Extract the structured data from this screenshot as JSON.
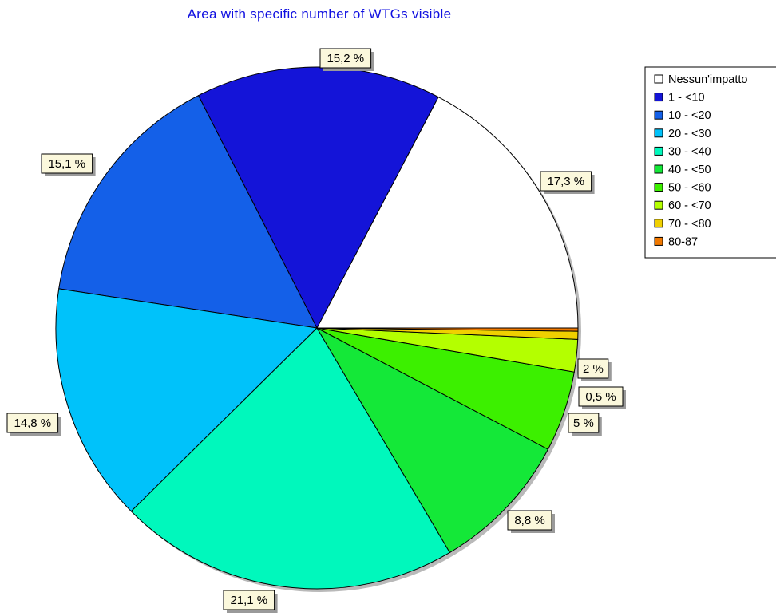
{
  "chart_data": {
    "type": "pie",
    "title": "Area with specific number of WTGs visible",
    "start_angle_deg": 0,
    "direction": "counterclockwise",
    "slices": [
      {
        "label": "Nessun'impatto",
        "value": 17.3,
        "display": "17,3 %",
        "color": "#ffffff"
      },
      {
        "label": "1 - <10",
        "value": 15.2,
        "display": "15,2 %",
        "color": "#1414d8"
      },
      {
        "label": "10 - <20",
        "value": 15.1,
        "display": "15,1 %",
        "color": "#1460e8"
      },
      {
        "label": "20 - <30",
        "value": 14.8,
        "display": "14,8 %",
        "color": "#00c2fa"
      },
      {
        "label": "30 - <40",
        "value": 21.1,
        "display": "21,1 %",
        "color": "#00f8bc"
      },
      {
        "label": "40 - <50",
        "value": 8.8,
        "display": "8,8 %",
        "color": "#14e838"
      },
      {
        "label": "50 - <60",
        "value": 5,
        "display": "5 %",
        "color": "#3cf000"
      },
      {
        "label": "60 - <70",
        "value": 2,
        "display": "2 %",
        "color": "#b4ff00"
      },
      {
        "label": "70 - <80",
        "value": 0.5,
        "display": "0,5 %",
        "color": "#f0d000"
      },
      {
        "label": "80-87",
        "value": 0.2,
        "display": "",
        "color": "#f07800"
      }
    ],
    "legend_position": "top-right"
  }
}
